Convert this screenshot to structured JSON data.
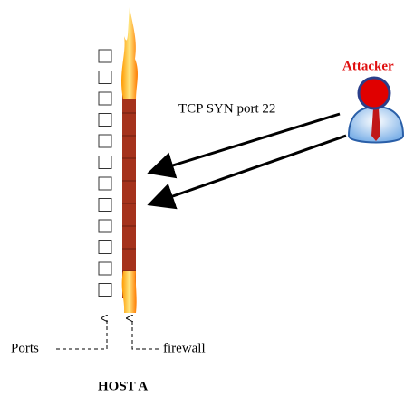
{
  "attacker_label": "Attacker",
  "arrow_label": "TCP SYN port 22",
  "ports_label": "Ports",
  "firewall_label": "firewall",
  "host_label": "HOST A"
}
